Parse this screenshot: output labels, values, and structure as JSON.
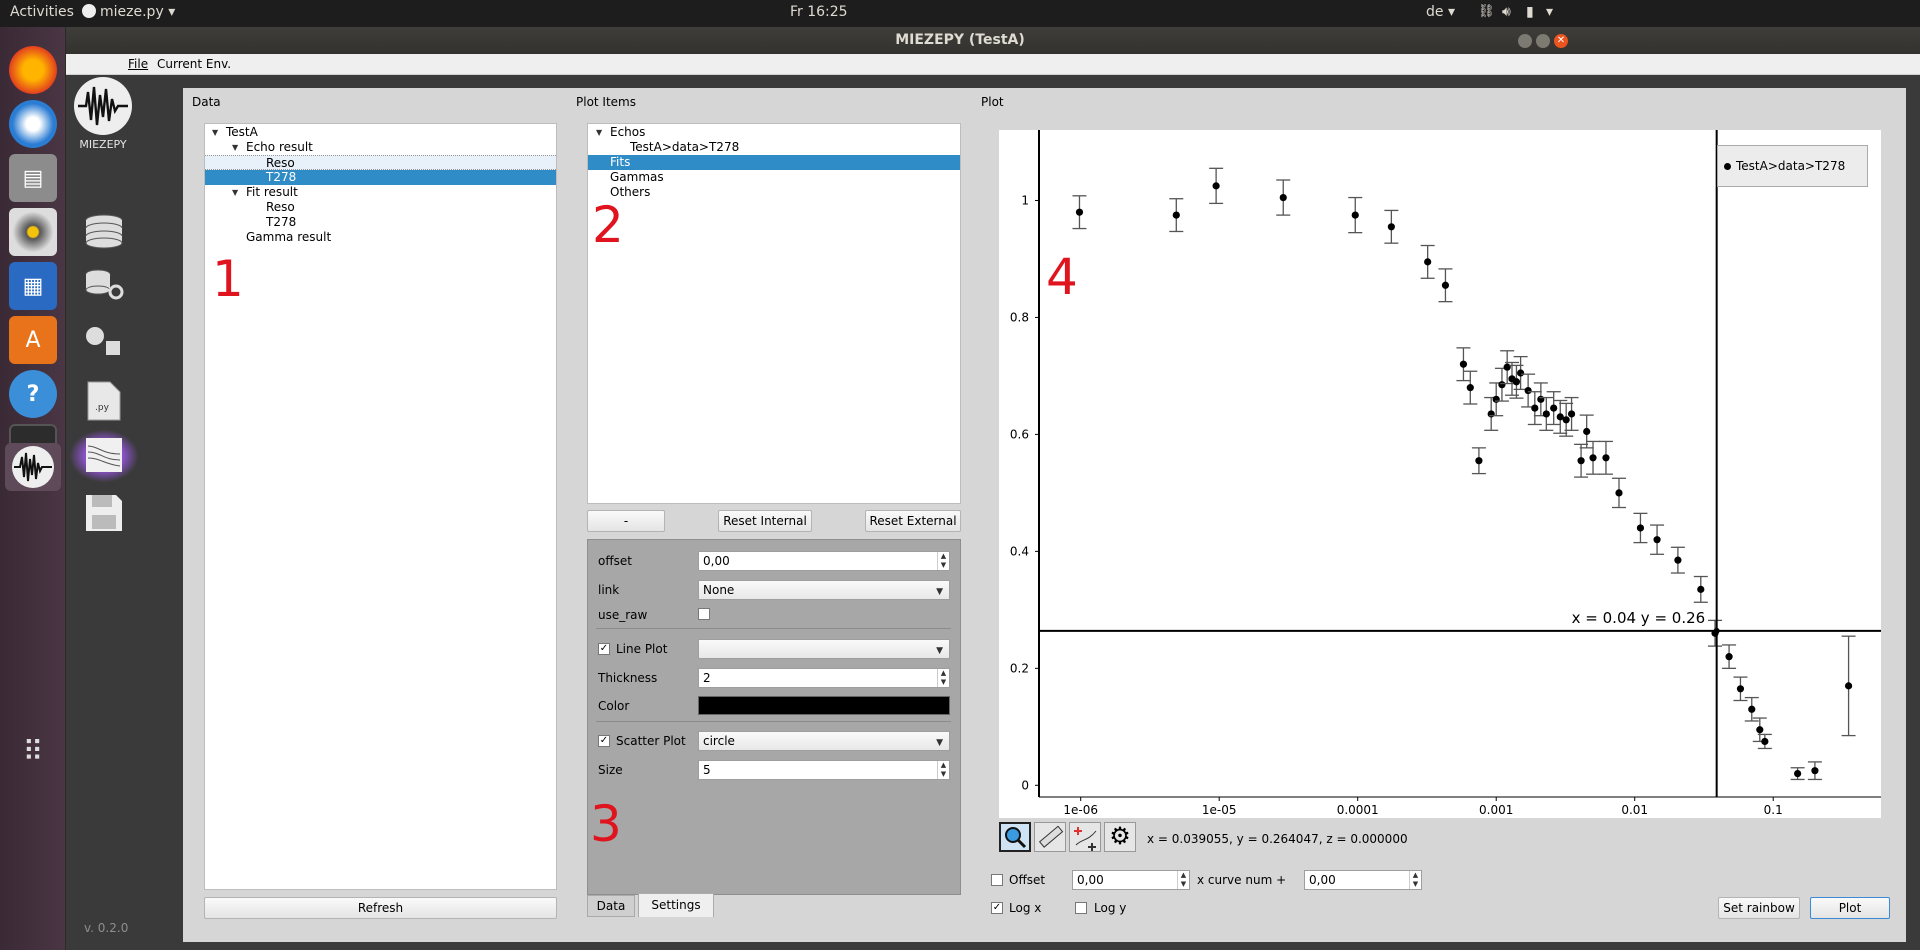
{
  "topbar": {
    "activities": "Activities",
    "app_menu": "mieze.py",
    "clock": "Fr 16:25",
    "lang": "de"
  },
  "window": {
    "title": "MIEZEPY (TestA)"
  },
  "menubar": {
    "file": "File",
    "current_env": "Current Env."
  },
  "sidebar": {
    "logo_label": "MIEZEPY",
    "version": "v. 0.2.0"
  },
  "data_panel": {
    "title": "Data",
    "tree": [
      {
        "label": "TestA",
        "level": 0,
        "expanded": true
      },
      {
        "label": "Echo result",
        "level": 1,
        "expanded": true
      },
      {
        "label": "Reso",
        "level": 2
      },
      {
        "label": "T278",
        "level": 2,
        "selected": true
      },
      {
        "label": "Fit result",
        "level": 1,
        "expanded": true
      },
      {
        "label": "Reso",
        "level": 2
      },
      {
        "label": "T278",
        "level": 2
      },
      {
        "label": "Gamma result",
        "level": 1
      }
    ],
    "refresh": "Refresh",
    "annot": "1"
  },
  "plot_items": {
    "title": "Plot Items",
    "tree": [
      {
        "label": "Echos",
        "level": 0,
        "expanded": true
      },
      {
        "label": "TestA>data>T278",
        "level": 1
      },
      {
        "label": "Fits",
        "level": 0,
        "selected": true
      },
      {
        "label": "Gammas",
        "level": 0
      },
      {
        "label": "Others",
        "level": 0
      }
    ],
    "annot": "2",
    "btn_minus": "-",
    "btn_reset_internal": "Reset Internal",
    "btn_reset_external": "Reset External"
  },
  "settings": {
    "offset_label": "offset",
    "offset_value": "0,00",
    "link_label": "link",
    "link_value": "None",
    "use_raw_label": "use_raw",
    "line_plot_label": "Line Plot",
    "line_plot_value": "",
    "thickness_label": "Thickness",
    "thickness_value": "2",
    "color_label": "Color",
    "color_value": "#000000",
    "scatter_label": "Scatter Plot",
    "scatter_value": "circle",
    "size_label": "Size",
    "size_value": "5",
    "annot": "3",
    "tab_data": "Data",
    "tab_settings": "Settings"
  },
  "plot": {
    "title": "Plot",
    "annot": "4",
    "legend": "TestA>data>T278",
    "cursor_label": "x = 0.04 y = 0.26",
    "status": "x = 0.039055, y = 0.264047, z = 0.000000",
    "offset_label": "Offset",
    "offset_value": "0,00",
    "curve_label": "x curve num +",
    "curve_value": "0,00",
    "logx_label": "Log x",
    "logy_label": "Log y",
    "set_rainbow": "Set rainbow",
    "plot_btn": "Plot"
  },
  "chart_data": {
    "type": "scatter",
    "xscale": "log",
    "xlim": [
      5e-07,
      0.6
    ],
    "ylim": [
      -0.02,
      1.1
    ],
    "xticks": [
      "1e-06",
      "1e-05",
      "0.0001",
      "0.001",
      "0.01",
      "0.1"
    ],
    "yticks": [
      "0",
      "0.2",
      "0.4",
      "0.6",
      "0.8",
      "1"
    ],
    "crosshair": {
      "x": 0.039055,
      "y": 0.264047
    },
    "series": [
      {
        "name": "TestA>data>T278",
        "x": [
          9.8e-07,
          4.9e-06,
          9.5e-06,
          2.9e-05,
          9.6e-05,
          0.000175,
          0.00032,
          0.00043,
          0.00058,
          0.00065,
          0.00075,
          0.00092,
          0.001,
          0.0011,
          0.0012,
          0.0013,
          0.0014,
          0.0015,
          0.0017,
          0.0019,
          0.0021,
          0.0023,
          0.0026,
          0.0029,
          0.0032,
          0.0035,
          0.0041,
          0.0045,
          0.005,
          0.0062,
          0.0077,
          0.011,
          0.0145,
          0.0205,
          0.03,
          0.038,
          0.048,
          0.058,
          0.07,
          0.08,
          0.087,
          0.15,
          0.2,
          0.35
        ],
        "y": [
          0.98,
          0.975,
          1.025,
          1.005,
          0.975,
          0.955,
          0.895,
          0.855,
          0.72,
          0.68,
          0.555,
          0.635,
          0.66,
          0.685,
          0.715,
          0.695,
          0.69,
          0.705,
          0.675,
          0.645,
          0.66,
          0.635,
          0.645,
          0.63,
          0.625,
          0.635,
          0.555,
          0.605,
          0.56,
          0.56,
          0.5,
          0.44,
          0.42,
          0.385,
          0.335,
          0.26,
          0.22,
          0.165,
          0.13,
          0.095,
          0.075,
          0.02,
          0.025,
          0.17
        ],
        "err": [
          0.028,
          0.028,
          0.03,
          0.03,
          0.03,
          0.028,
          0.028,
          0.028,
          0.028,
          0.028,
          0.022,
          0.028,
          0.028,
          0.028,
          0.028,
          0.028,
          0.028,
          0.028,
          0.028,
          0.028,
          0.028,
          0.028,
          0.028,
          0.028,
          0.028,
          0.028,
          0.028,
          0.028,
          0.028,
          0.028,
          0.025,
          0.025,
          0.025,
          0.022,
          0.022,
          0.022,
          0.02,
          0.02,
          0.02,
          0.02,
          0.012,
          0.01,
          0.015,
          0.085
        ]
      }
    ]
  }
}
